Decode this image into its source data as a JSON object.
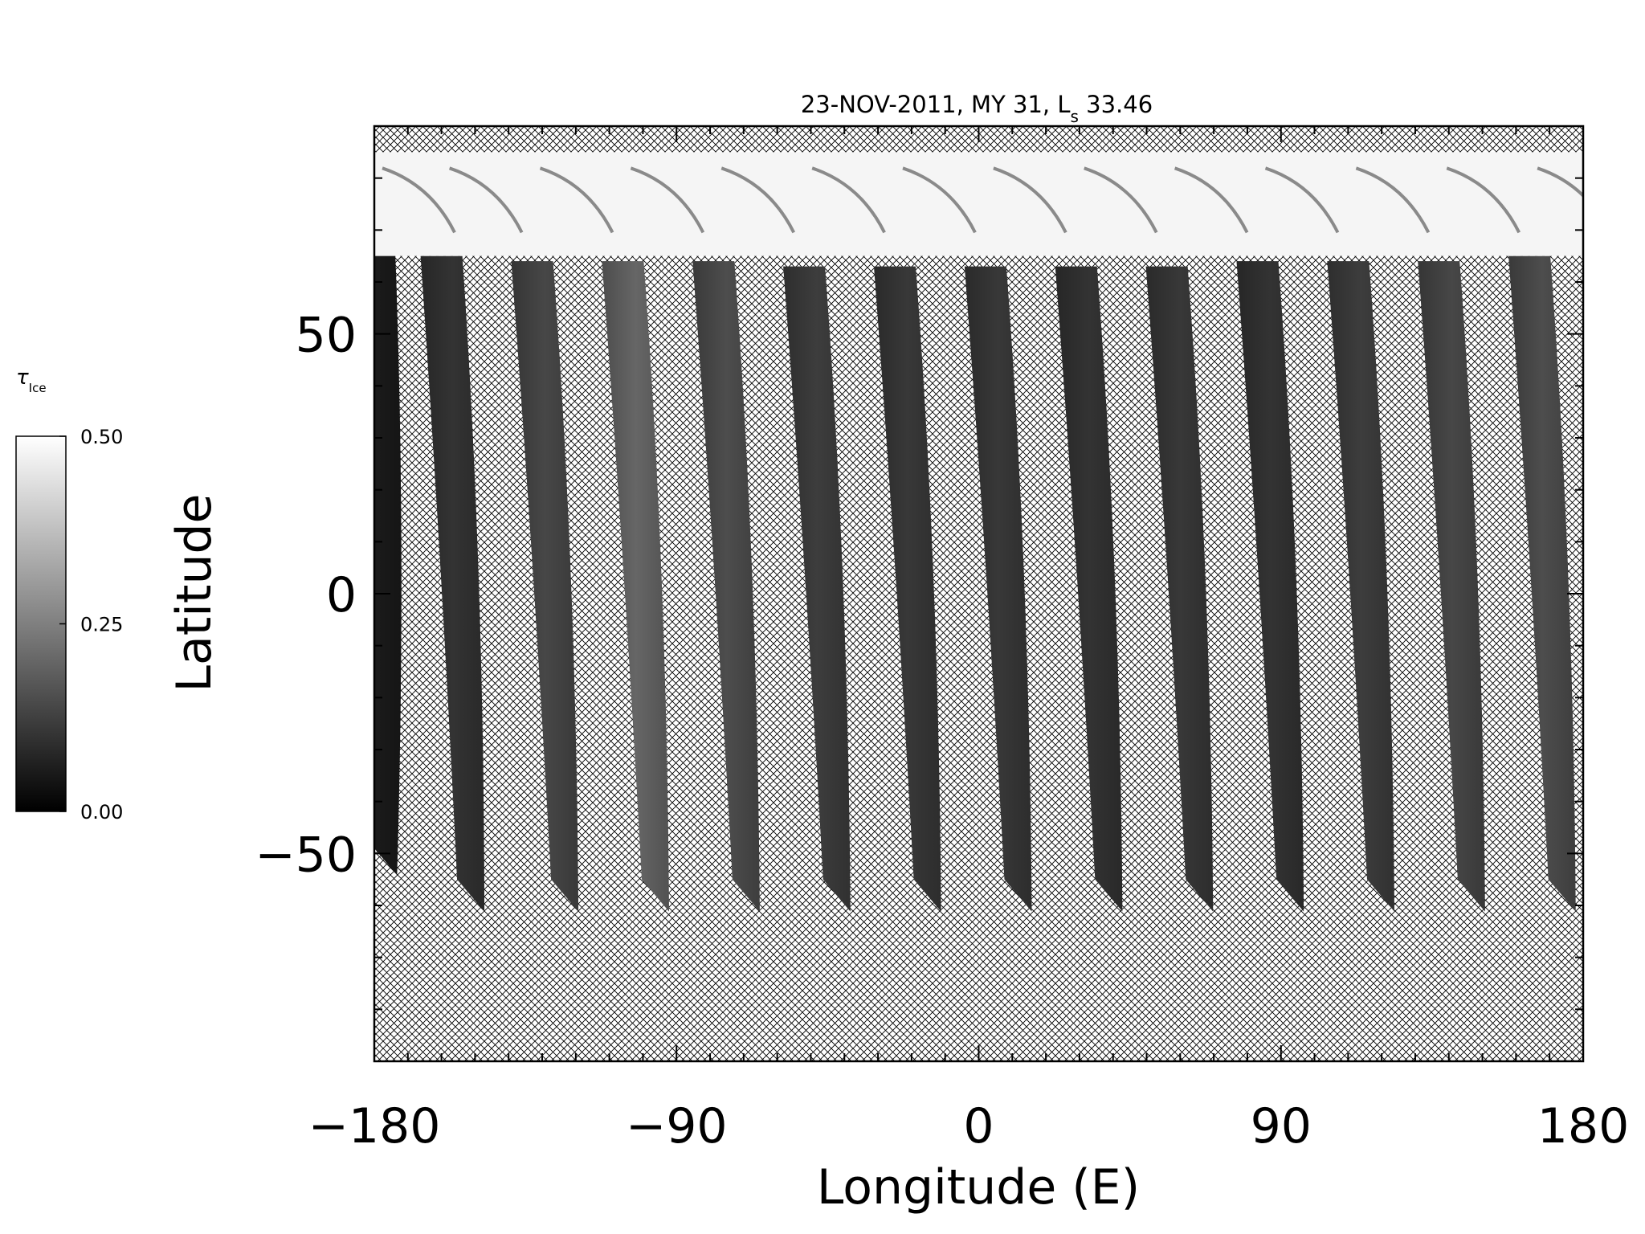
{
  "chart_data": {
    "type": "heatmap",
    "title": "23-NOV-2011, MY 31,  L",
    "title_subscript": "s",
    "title_suffix": " 33.46",
    "xlabel": "Longitude (E)",
    "ylabel": "Latitude",
    "xlim": [
      -180,
      180
    ],
    "ylim": [
      -90,
      90
    ],
    "xticks": [
      -180,
      -90,
      0,
      90,
      180
    ],
    "xtick_labels": [
      "−180",
      "−90",
      "0",
      "90",
      "180"
    ],
    "yticks": [
      50,
      0,
      -50
    ],
    "ytick_labels": [
      "50",
      "0",
      "−50"
    ],
    "x_minor_step": 10,
    "y_minor_step": 10,
    "no_data_pattern": "crosshatch",
    "colorbar": {
      "label": "τ",
      "label_subscript": "Ice",
      "min": 0.0,
      "max": 0.5,
      "ticks": [
        0.5,
        0.25,
        0.0
      ],
      "tick_labels": [
        "0.50",
        "0.25",
        "0.00"
      ],
      "colors": [
        "#000000",
        "#ffffff"
      ]
    },
    "polar_cap": {
      "lat_min": 65,
      "lat_max": 85,
      "value": 0.48
    },
    "swaths": [
      {
        "lon_top": -180,
        "lon_bottom": -178,
        "lat_top": 66,
        "lat_bottom": -48,
        "value": 0.05
      },
      {
        "lon_top": -160,
        "lon_bottom": -152,
        "lat_top": 65,
        "lat_bottom": -55,
        "value": 0.1
      },
      {
        "lon_top": -133,
        "lon_bottom": -124,
        "lat_top": 64,
        "lat_bottom": -55,
        "value": 0.14
      },
      {
        "lon_top": -106,
        "lon_bottom": -97,
        "lat_top": 64,
        "lat_bottom": -55,
        "value": 0.2
      },
      {
        "lon_top": -79,
        "lon_bottom": -70,
        "lat_top": 64,
        "lat_bottom": -55,
        "value": 0.15
      },
      {
        "lon_top": -52,
        "lon_bottom": -43,
        "lat_top": 63,
        "lat_bottom": -55,
        "value": 0.12
      },
      {
        "lon_top": -25,
        "lon_bottom": -16,
        "lat_top": 63,
        "lat_bottom": -55,
        "value": 0.11
      },
      {
        "lon_top": 2,
        "lon_bottom": 11,
        "lat_top": 63,
        "lat_bottom": -55,
        "value": 0.11
      },
      {
        "lon_top": 29,
        "lon_bottom": 38,
        "lat_top": 63,
        "lat_bottom": -55,
        "value": 0.1
      },
      {
        "lon_top": 56,
        "lon_bottom": 65,
        "lat_top": 63,
        "lat_bottom": -55,
        "value": 0.11
      },
      {
        "lon_top": 83,
        "lon_bottom": 92,
        "lat_top": 64,
        "lat_bottom": -55,
        "value": 0.1
      },
      {
        "lon_top": 110,
        "lon_bottom": 119,
        "lat_top": 64,
        "lat_bottom": -55,
        "value": 0.12
      },
      {
        "lon_top": 137,
        "lon_bottom": 146,
        "lat_top": 64,
        "lat_bottom": -55,
        "value": 0.14
      },
      {
        "lon_top": 164,
        "lon_bottom": 173,
        "lat_top": 65,
        "lat_bottom": -55,
        "value": 0.15
      }
    ]
  }
}
